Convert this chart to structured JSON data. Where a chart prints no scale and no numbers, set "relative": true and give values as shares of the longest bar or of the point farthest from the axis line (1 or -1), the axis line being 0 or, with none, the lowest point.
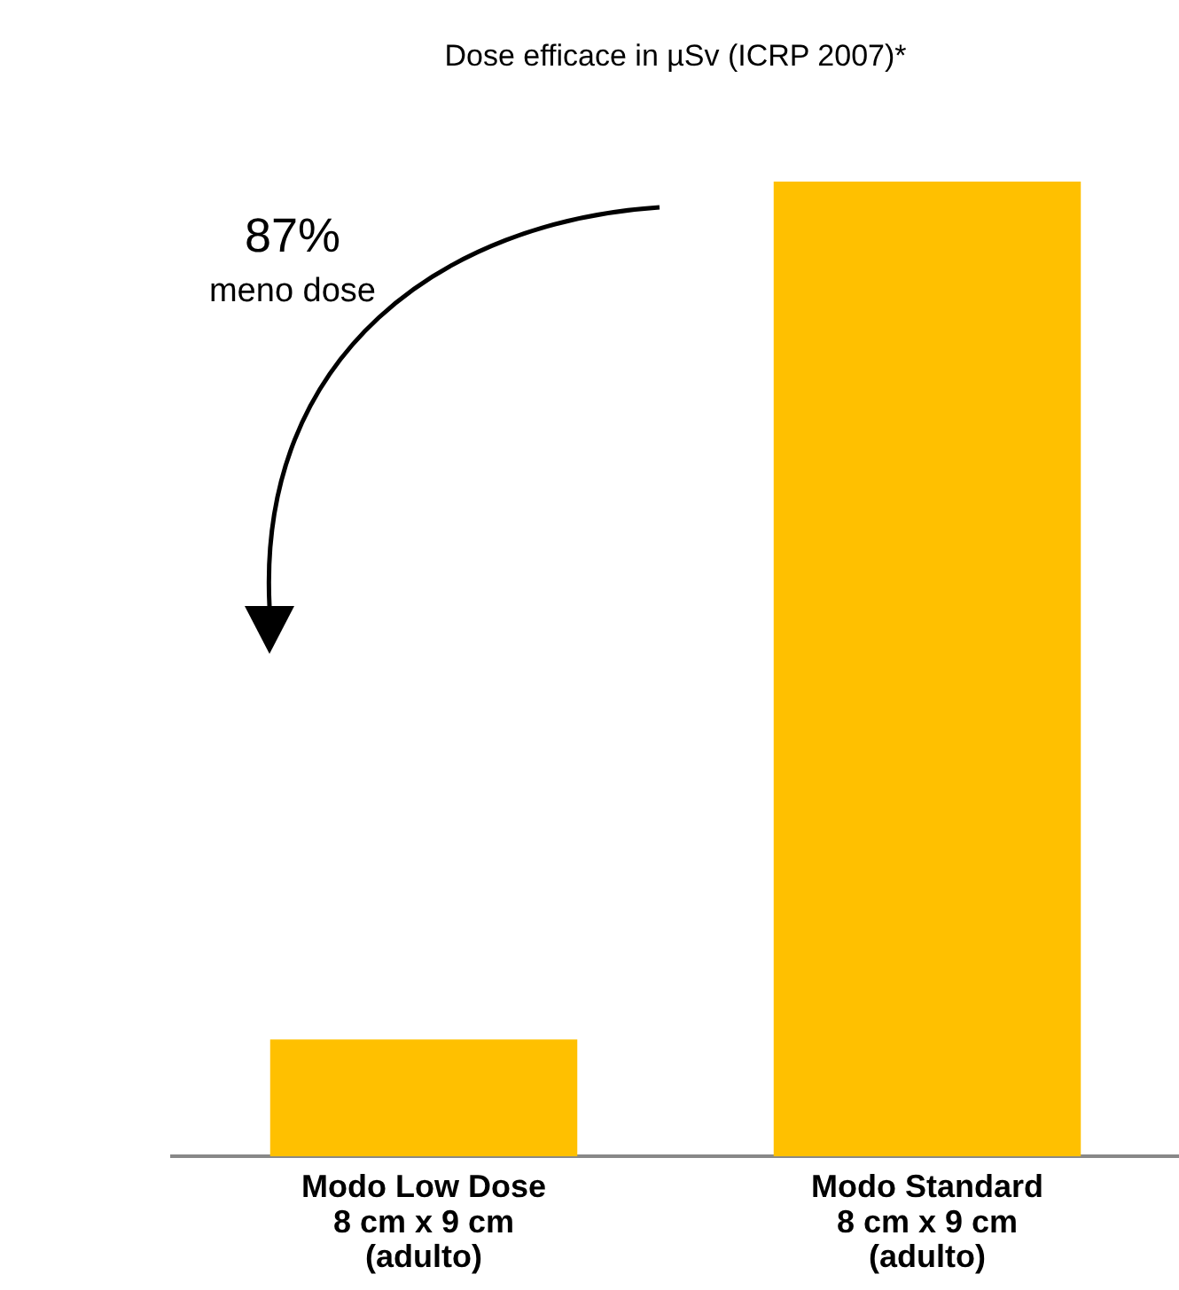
{
  "chart_data": {
    "type": "bar",
    "title": "Dose efficace in µSv (ICRP 2007)*",
    "categories": [
      "Modo Low Dose\n8 cm x 9 cm\n(adulto)",
      "Modo Standard\n8 cm x 9 cm\n(adulto)"
    ],
    "values": [
      0.12,
      1
    ],
    "color": "#ffc000",
    "relative": true,
    "grid": false,
    "legend": false,
    "annotations": [
      "87%",
      "meno dose"
    ]
  }
}
